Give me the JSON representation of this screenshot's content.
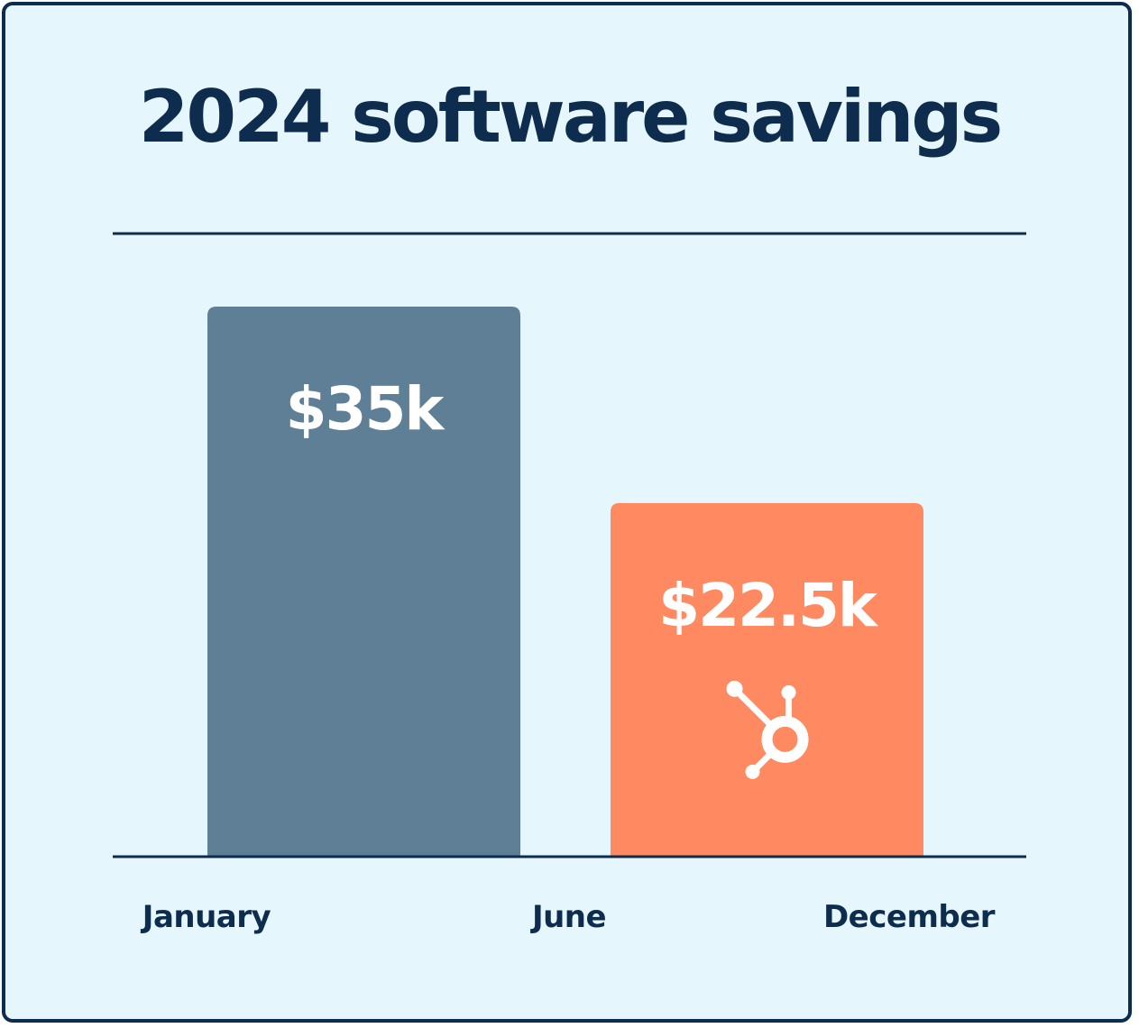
{
  "chart_data": {
    "type": "bar",
    "title": "2024 software savings",
    "xlabel": "",
    "ylabel": "",
    "x_ticks": [
      "January",
      "June",
      "December"
    ],
    "series": [
      {
        "name": "",
        "start": "January",
        "end": "June",
        "value": 35000,
        "label": "$35k",
        "color": "#5f7f97"
      },
      {
        "name": "",
        "start": "June",
        "end": "December",
        "value": 22500,
        "label": "$22.5k",
        "color": "#ff8961",
        "icon": "hubspot-logo-icon"
      }
    ],
    "ylim": [
      0,
      35000
    ],
    "grid": false,
    "legend": "none"
  },
  "colors": {
    "background": "#e5f7fc",
    "border": "#0e2c4d",
    "text": "#0e2c4d"
  }
}
